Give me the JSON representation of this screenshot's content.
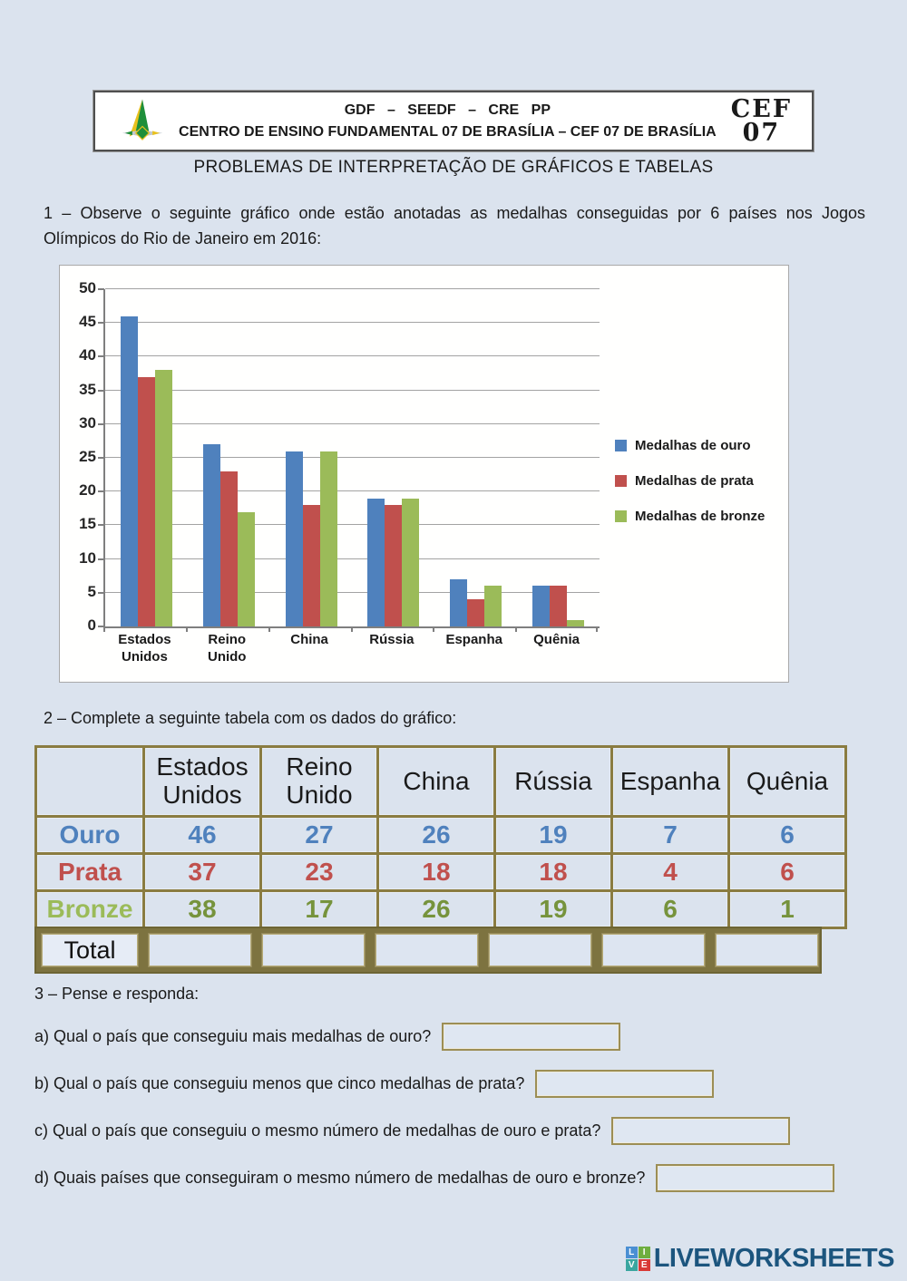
{
  "header": {
    "line1": "GDF – SEEDF – CRE PP",
    "line2": "CENTRO DE ENSINO FUNDAMENTAL 07 DE BRASÍLIA – CEF 07 DE BRASÍLIA",
    "badge_line1": "CEF",
    "badge_line2": "07"
  },
  "title": "PROBLEMAS DE INTERPRETAÇÃO DE GRÁFICOS E TABELAS",
  "question1": "1 – Observe o seguinte gráfico onde estão anotadas as medalhas conseguidas por 6 países nos Jogos Olímpicos do Rio de Janeiro em 2016:",
  "chart_data": {
    "type": "bar",
    "title": "",
    "categories": [
      "Estados\nUnidos",
      "Reino\nUnido",
      "China",
      "Rússia",
      "Espanha",
      "Quênia"
    ],
    "series": [
      {
        "name": "Medalhas de ouro",
        "color": "#4f81bd",
        "values": [
          46,
          27,
          26,
          19,
          7,
          6
        ]
      },
      {
        "name": "Medalhas de prata",
        "color": "#c0504d",
        "values": [
          37,
          23,
          18,
          18,
          4,
          6
        ]
      },
      {
        "name": "Medalhas de bronze",
        "color": "#9bbb59",
        "values": [
          38,
          17,
          26,
          19,
          6,
          1
        ]
      }
    ],
    "ylim": [
      0,
      50
    ],
    "ytick_step": 5,
    "grid": true,
    "legend_position": "right"
  },
  "question2": "2 – Complete a seguinte tabela com os dados do gráfico:",
  "table": {
    "corner": "",
    "columns": [
      "Estados Unidos",
      "Reino Unido",
      "China",
      "Rússia",
      "Espanha",
      "Quênia"
    ],
    "rows": [
      {
        "label": "Ouro",
        "label_color": "#4f81bd",
        "value_color": "#4f81bd",
        "values": [
          "46",
          "27",
          "26",
          "19",
          "7",
          "6"
        ]
      },
      {
        "label": "Prata",
        "label_color": "#c0504d",
        "value_color": "#c0504d",
        "values": [
          "37",
          "23",
          "18",
          "18",
          "4",
          "6"
        ]
      },
      {
        "label": "Bronze",
        "label_color": "#9bbb59",
        "value_color": "#76933c",
        "values": [
          "38",
          "17",
          "26",
          "19",
          "6",
          "1"
        ]
      }
    ],
    "total_label": "Total",
    "total_inputs": [
      "",
      "",
      "",
      "",
      "",
      ""
    ]
  },
  "question3": {
    "intro": "3 – Pense e responda:",
    "items": [
      {
        "label": "a) Qual o país que conseguiu mais medalhas de ouro?",
        "value": ""
      },
      {
        "label": "b) Qual o país que conseguiu menos que cinco medalhas de prata?",
        "value": ""
      },
      {
        "label": "c) Qual o país que conseguiu o mesmo número de medalhas de ouro e prata?",
        "value": ""
      },
      {
        "label": "d) Quais países que conseguiram o mesmo número de medalhas de ouro e bronze?",
        "value": ""
      }
    ]
  },
  "footer": {
    "brand": "LIVEWORKSHEETS",
    "brand_color": "#1c557e",
    "tiles": [
      {
        "letter": "L",
        "color": "#4a8fd3"
      },
      {
        "letter": "I",
        "color": "#6fae3f"
      },
      {
        "letter": "V",
        "color": "#3aa6a0"
      },
      {
        "letter": "E",
        "color": "#d93a36"
      }
    ]
  },
  "colors": {
    "page_bg": "#dbe3ee",
    "table_border": "#8a7c41",
    "gold": "#4f81bd",
    "silver": "#c0504d",
    "bronze": "#9bbb59"
  }
}
